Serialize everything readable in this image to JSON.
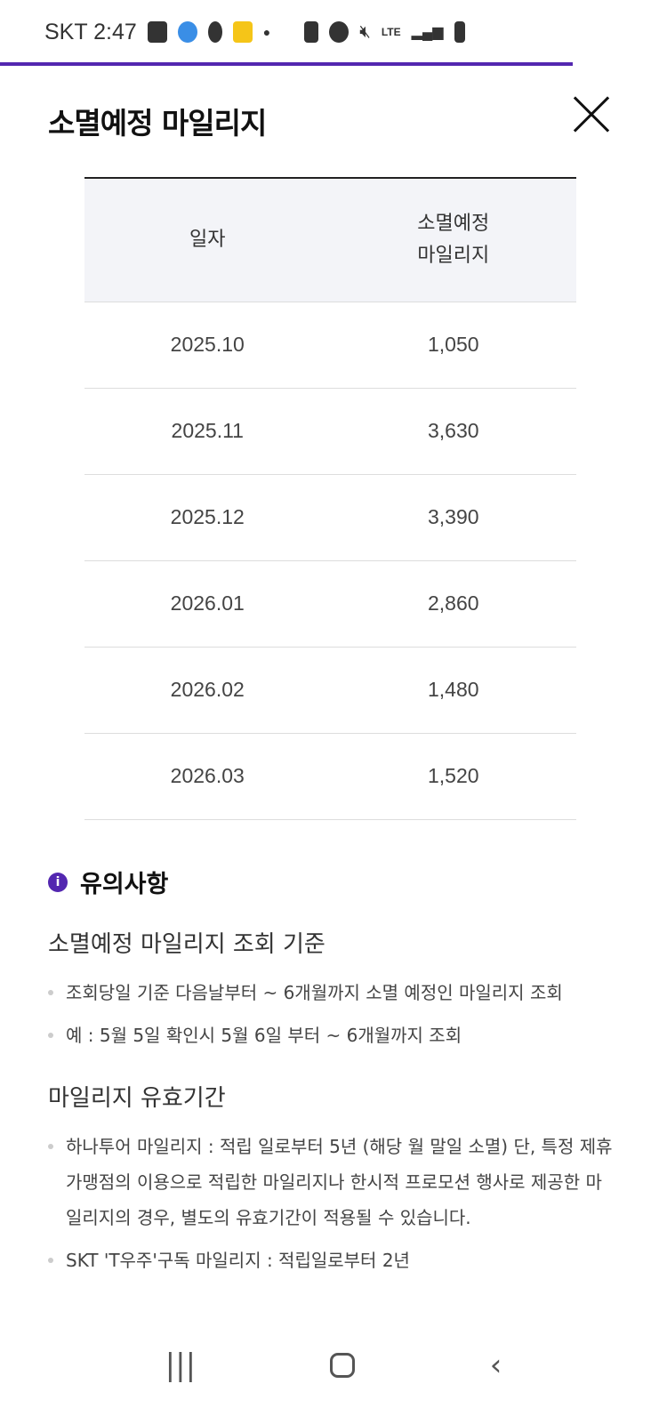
{
  "status_bar": {
    "carrier_time": "SKT 2:47",
    "network": "LTE"
  },
  "header": {
    "title": "소멸예정 마일리지"
  },
  "table": {
    "headers": [
      "일자",
      "소멸예정\n마일리지"
    ],
    "rows": [
      [
        "2025.10",
        "1,050"
      ],
      [
        "2025.11",
        "3,630"
      ],
      [
        "2025.12",
        "3,390"
      ],
      [
        "2026.01",
        "2,860"
      ],
      [
        "2026.02",
        "1,480"
      ],
      [
        "2026.03",
        "1,520"
      ]
    ]
  },
  "notice": {
    "title": "유의사항",
    "sections": [
      {
        "title": "소멸예정 마일리지 조회 기준",
        "items": [
          "조회당일 기준 다음날부터 ~ 6개월까지 소멸 예정인 마일리지 조회",
          "예 : 5월 5일 확인시 5월 6일 부터 ~ 6개월까지 조회"
        ]
      },
      {
        "title": "마일리지 유효기간",
        "items": [
          "하나투어 마일리지 : 적립 일로부터 5년 (해당 월 말일 소멸) 단, 특정 제휴 가맹점의 이용으로 적립한 마일리지나 한시적 프로모션 행사로 제공한 마일리지의 경우, 별도의 유효기간이 적용될 수 있습니다.",
          "SKT 'T우주'구독 마일리지 : 적립일로부터 2년"
        ]
      }
    ]
  },
  "colors": {
    "accent": "#5327b0",
    "header_bg": "#f3f4f8"
  }
}
